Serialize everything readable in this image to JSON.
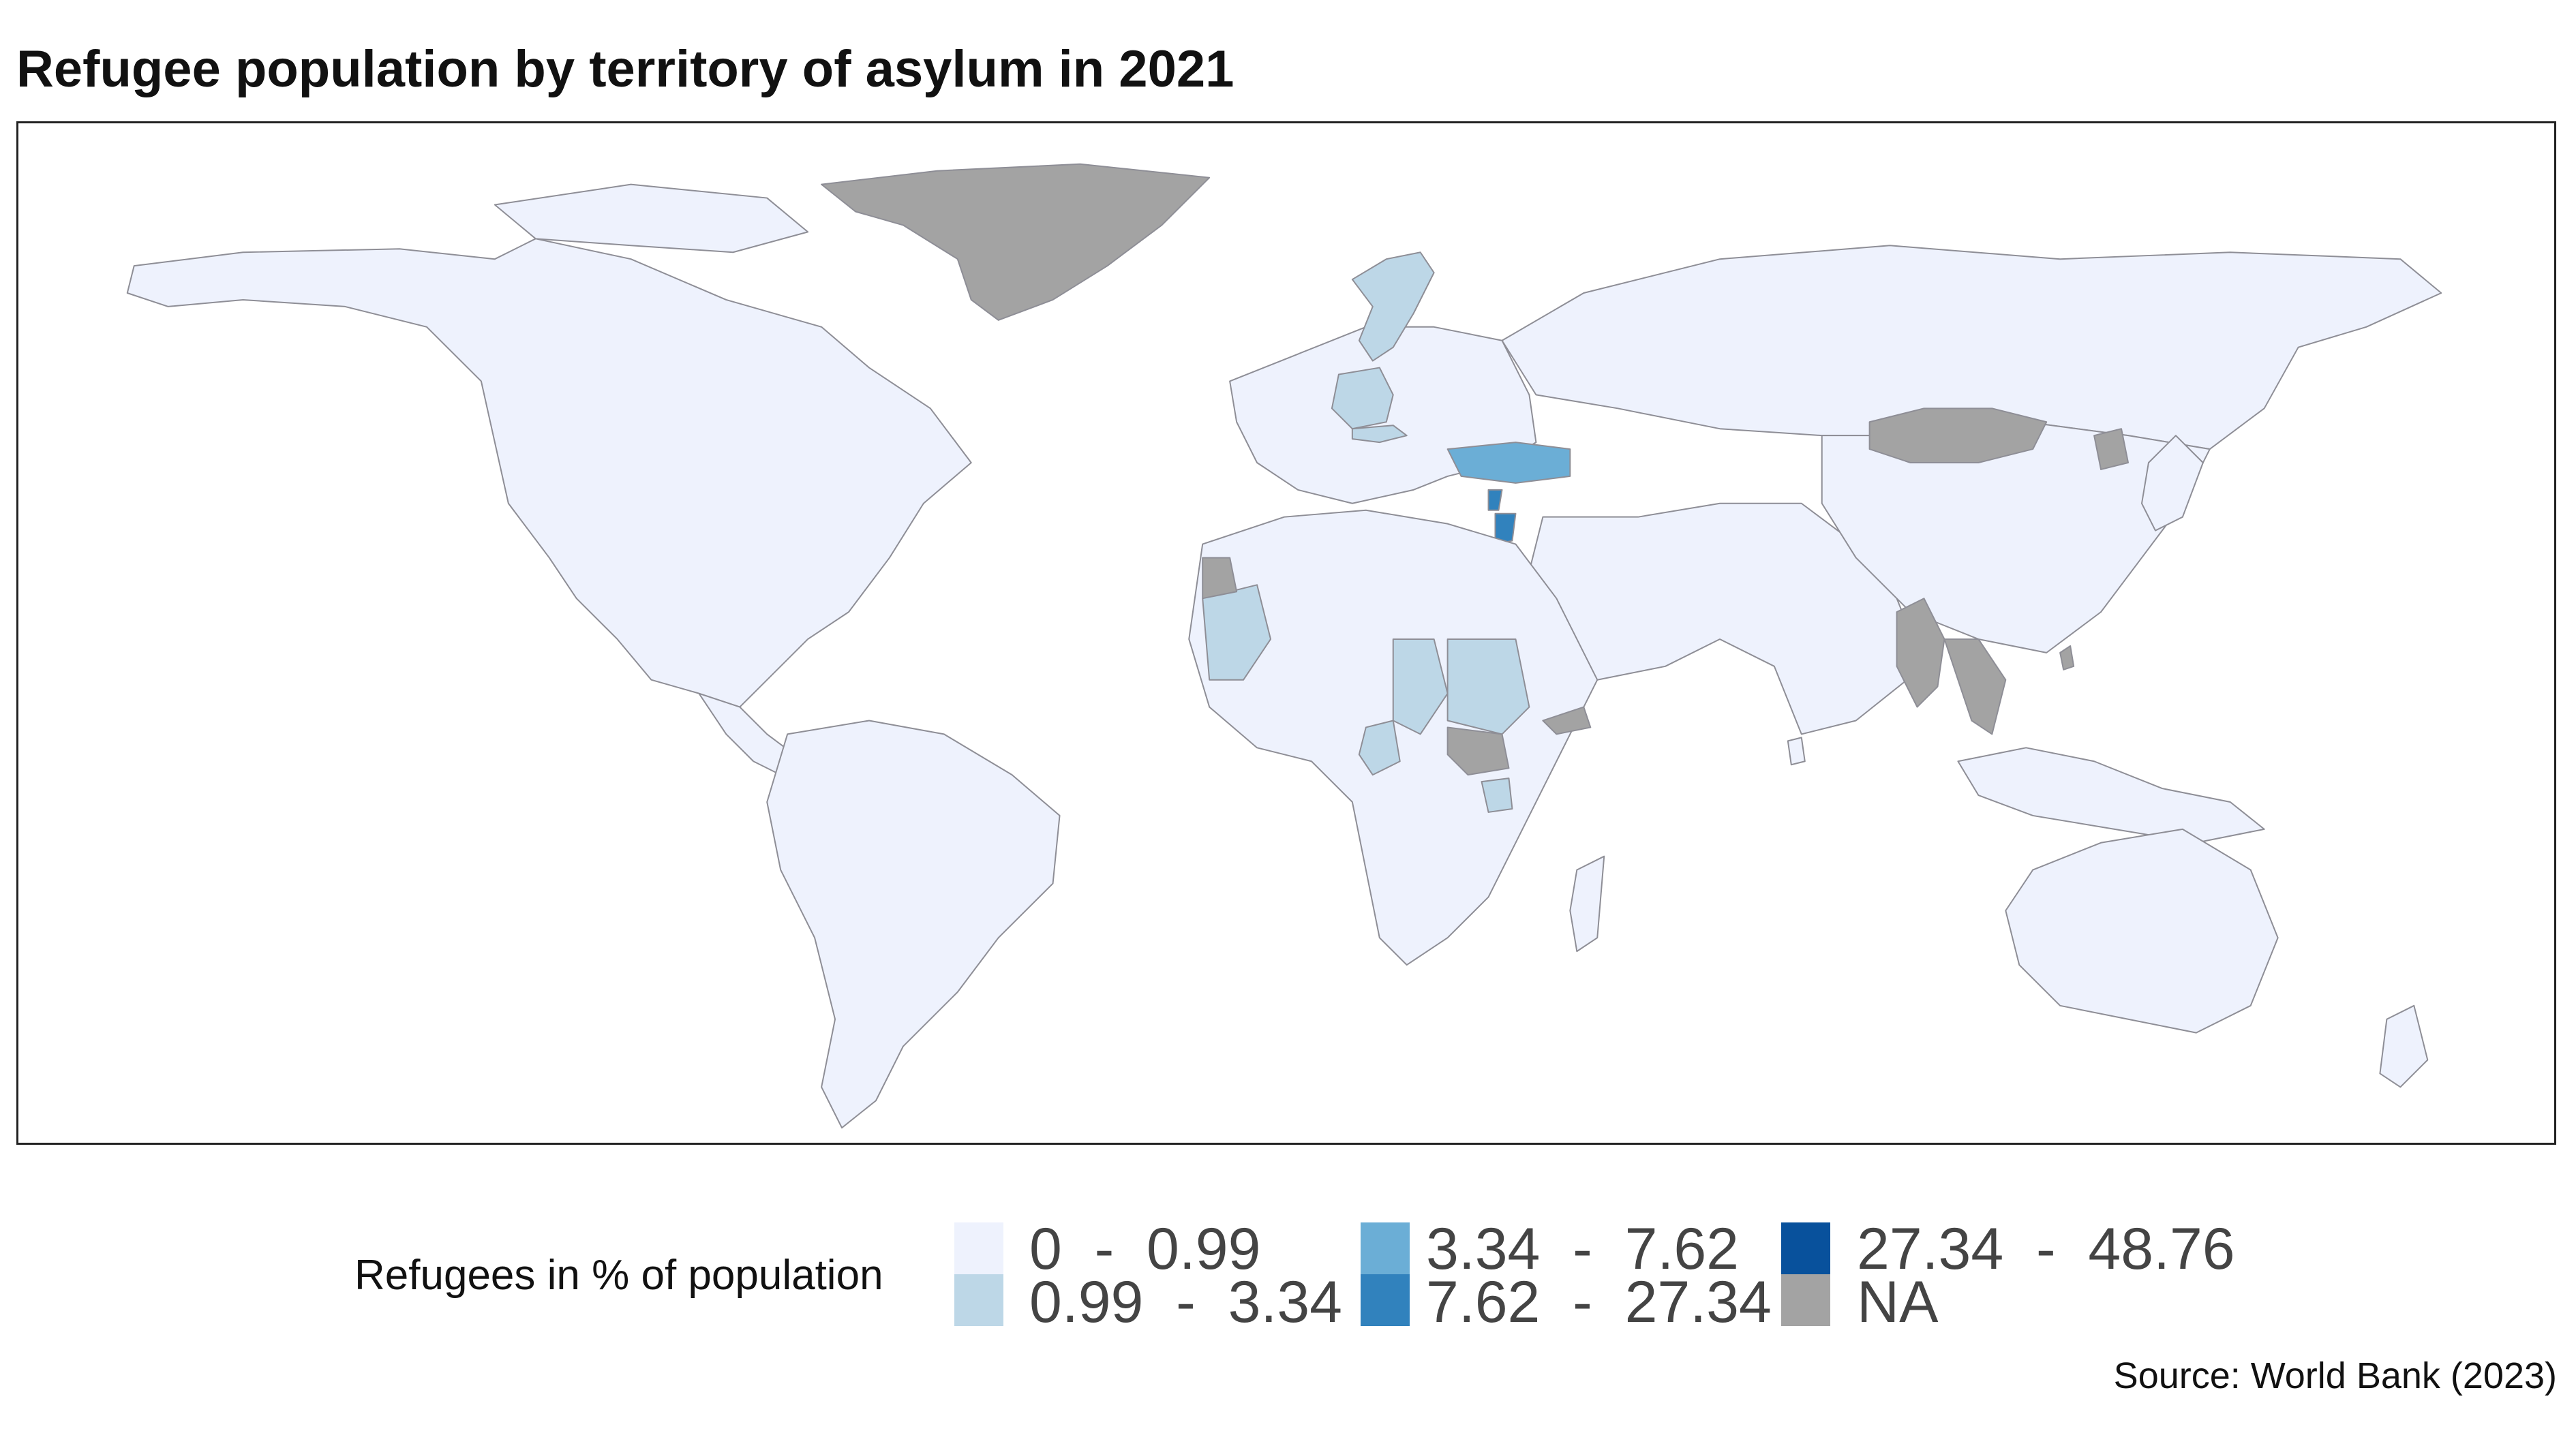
{
  "title": "Refugee population by territory of asylum in 2021",
  "legend": {
    "title": "Refugees in % of population",
    "items": [
      {
        "label": "0  -  0.99",
        "color": "#eef2fd"
      },
      {
        "label": "0.99  -  3.34",
        "color": "#bdd7e7"
      },
      {
        "label": "3.34  -  7.62",
        "color": "#6baed6"
      },
      {
        "label": "7.62  -  27.34",
        "color": "#3182bd"
      },
      {
        "label": "27.34  -  48.76",
        "color": "#08519c"
      },
      {
        "label": "NA",
        "color": "#a3a3a3"
      }
    ]
  },
  "source": "Source: World Bank (2023)",
  "regions": [
    {
      "name": "North America",
      "class": "0  -  0.99"
    },
    {
      "name": "Greenland",
      "class": "NA"
    },
    {
      "name": "South America",
      "class": "0  -  0.99"
    },
    {
      "name": "Europe",
      "class": "0  -  0.99"
    },
    {
      "name": "Sweden",
      "class": "0.99  -  3.34"
    },
    {
      "name": "Germany",
      "class": "0.99  -  3.34"
    },
    {
      "name": "Austria",
      "class": "0.99  -  3.34"
    },
    {
      "name": "Russia",
      "class": "0  -  0.99"
    },
    {
      "name": "Turkey",
      "class": "3.34  -  7.62"
    },
    {
      "name": "Lebanon",
      "class": "7.62  -  27.34"
    },
    {
      "name": "Jordan",
      "class": "7.62  -  27.34"
    },
    {
      "name": "Africa",
      "class": "0  -  0.99"
    },
    {
      "name": "Mauritania",
      "class": "0.99  -  3.34"
    },
    {
      "name": "Western Sahara",
      "class": "NA"
    },
    {
      "name": "Chad",
      "class": "0.99  -  3.34"
    },
    {
      "name": "Sudan",
      "class": "0.99  -  3.34"
    },
    {
      "name": "Cameroon",
      "class": "0.99  -  3.34"
    },
    {
      "name": "Uganda",
      "class": "0.99  -  3.34"
    },
    {
      "name": "South Sudan",
      "class": "NA"
    },
    {
      "name": "Somaliland",
      "class": "NA"
    },
    {
      "name": "Middle East & South Asia",
      "class": "0  -  0.99"
    },
    {
      "name": "China",
      "class": "0  -  0.99"
    },
    {
      "name": "Mongolia",
      "class": "NA"
    },
    {
      "name": "North Korea",
      "class": "NA"
    },
    {
      "name": "Myanmar",
      "class": "NA"
    },
    {
      "name": "Laos / Vietnam",
      "class": "NA"
    },
    {
      "name": "Taiwan",
      "class": "NA"
    },
    {
      "name": "Japan",
      "class": "0  -  0.99"
    },
    {
      "name": "Southeast Asia Islands",
      "class": "0  -  0.99"
    },
    {
      "name": "Australia",
      "class": "0  -  0.99"
    },
    {
      "name": "New Zealand",
      "class": "0  -  0.99"
    },
    {
      "name": "Madagascar",
      "class": "0  -  0.99"
    },
    {
      "name": "Sri Lanka",
      "class": "0  -  0.99"
    }
  ]
}
